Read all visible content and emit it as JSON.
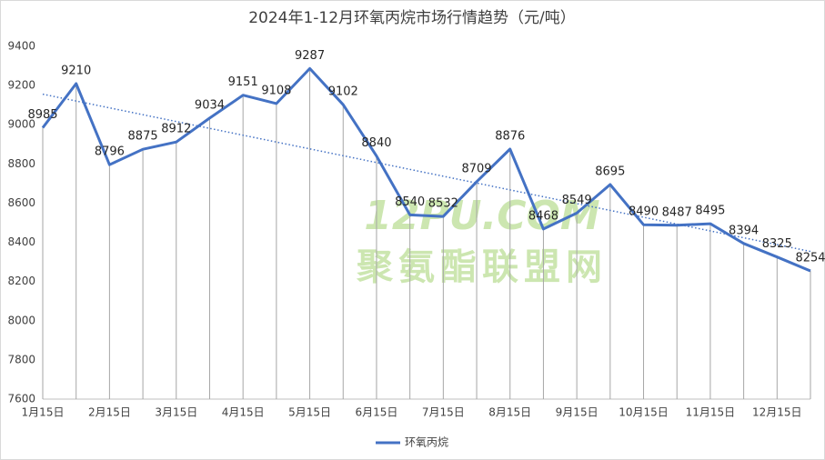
{
  "chart_data": {
    "type": "line",
    "title": "2024年1-12月环氧丙烷市场行情趋势（元/吨）",
    "categories": [
      "1月15日",
      null,
      "2月15日",
      null,
      "3月15日",
      null,
      "4月15日",
      null,
      "5月15日",
      null,
      "6月15日",
      null,
      "7月15日",
      null,
      "8月15日",
      null,
      "9月15日",
      null,
      "10月15日",
      null,
      "11月15日",
      null,
      "12月15日",
      null
    ],
    "series": [
      {
        "name": "环氧丙烷",
        "color": "#4472c4",
        "values": [
          8985,
          9210,
          8796,
          8875,
          8912,
          9034,
          9151,
          9108,
          9287,
          9102,
          8840,
          8540,
          8532,
          8709,
          8876,
          8468,
          8549,
          8695,
          8490,
          8487,
          8495,
          8394,
          8325,
          8254
        ]
      }
    ],
    "ylim": [
      7600,
      9400
    ],
    "yticks": [
      7600,
      7800,
      8000,
      8200,
      8400,
      8600,
      8800,
      9000,
      9200,
      9400
    ],
    "grid": false,
    "drop_lines": true,
    "trendline": "linear",
    "legend": "bottom",
    "watermark": [
      "12PU.COM",
      "聚氨酯联盟网"
    ]
  }
}
